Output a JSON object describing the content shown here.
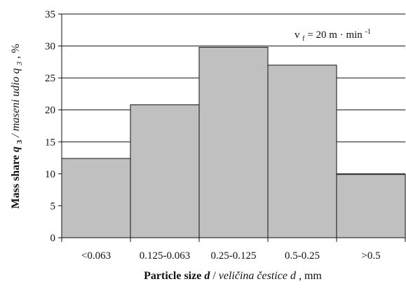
{
  "chart_data": {
    "type": "bar",
    "categories": [
      "<0.063",
      "0.125-0.063",
      "0.25-0.125",
      "0.5-0.25",
      ">0.5"
    ],
    "values": [
      12.4,
      20.8,
      29.8,
      27.0,
      9.9
    ],
    "ylim": [
      0,
      35
    ],
    "yticks": [
      0,
      5,
      10,
      15,
      20,
      25,
      30,
      35
    ],
    "grid": true,
    "bar_color": "#c0c0c0",
    "bar_edge_color": "#111111",
    "ylabel": {
      "bold": "Mass share ",
      "bold_italic_var": "q",
      "bold_italic_sub": "3",
      "italic": " / maseni udio ",
      "italic_var": "q",
      "italic_sub": "3",
      "tail": ", %"
    },
    "xlabel": {
      "bold": "Particle size ",
      "bold_italic_var": "d",
      "sep": " / ",
      "italic": "veličina čestice d",
      "tail": ", mm"
    },
    "annotation": {
      "var": "v",
      "sub": "f",
      "eq": " = 20 m · min",
      "sup": "-1"
    }
  }
}
